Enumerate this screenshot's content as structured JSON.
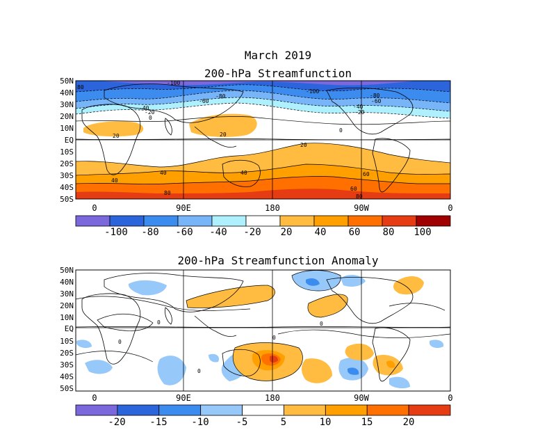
{
  "header": {
    "month": "March 2019",
    "title1": "200-hPa Streamfunction",
    "title2": "200-hPa Streamfunction Anomaly"
  },
  "lat_labels": [
    "50N",
    "40N",
    "30N",
    "20N",
    "10N",
    "EQ",
    "10S",
    "20S",
    "30S",
    "40S",
    "50S"
  ],
  "lon_labels": [
    "0",
    "90E",
    "180",
    "90W",
    "0"
  ],
  "colorbar1": {
    "labels": [
      "-100",
      "-80",
      "-60",
      "-40",
      "-20",
      "20",
      "40",
      "60",
      "80",
      "100"
    ],
    "colors": [
      "#7b68dc",
      "#2c64dc",
      "#3c8cf0",
      "#78b4f8",
      "#aef0fe",
      "#ffffff",
      "#ffbc40",
      "#ffa000",
      "#ff7000",
      "#e63c14",
      "#a00000"
    ]
  },
  "colorbar2": {
    "labels": [
      "-20",
      "-15",
      "-10",
      "-5",
      "5",
      "10",
      "15",
      "20"
    ],
    "colors": [
      "#7b68dc",
      "#2c64dc",
      "#3c8cf0",
      "#96c8fa",
      "#ffffff",
      "#ffbc40",
      "#ffa000",
      "#ff7000",
      "#e63c14"
    ]
  },
  "contour_labels_top": [
    "80",
    "-100",
    "-80",
    "-60",
    "-40",
    "-20",
    "0",
    "-100",
    "-80",
    "-60",
    "-40",
    "-20",
    "0",
    "20",
    "20",
    "20",
    "40",
    "40",
    "40",
    "60",
    "60",
    "80",
    "80"
  ],
  "contour_labels_bottom": [
    "0",
    "0",
    "0",
    "0",
    "0"
  ]
}
